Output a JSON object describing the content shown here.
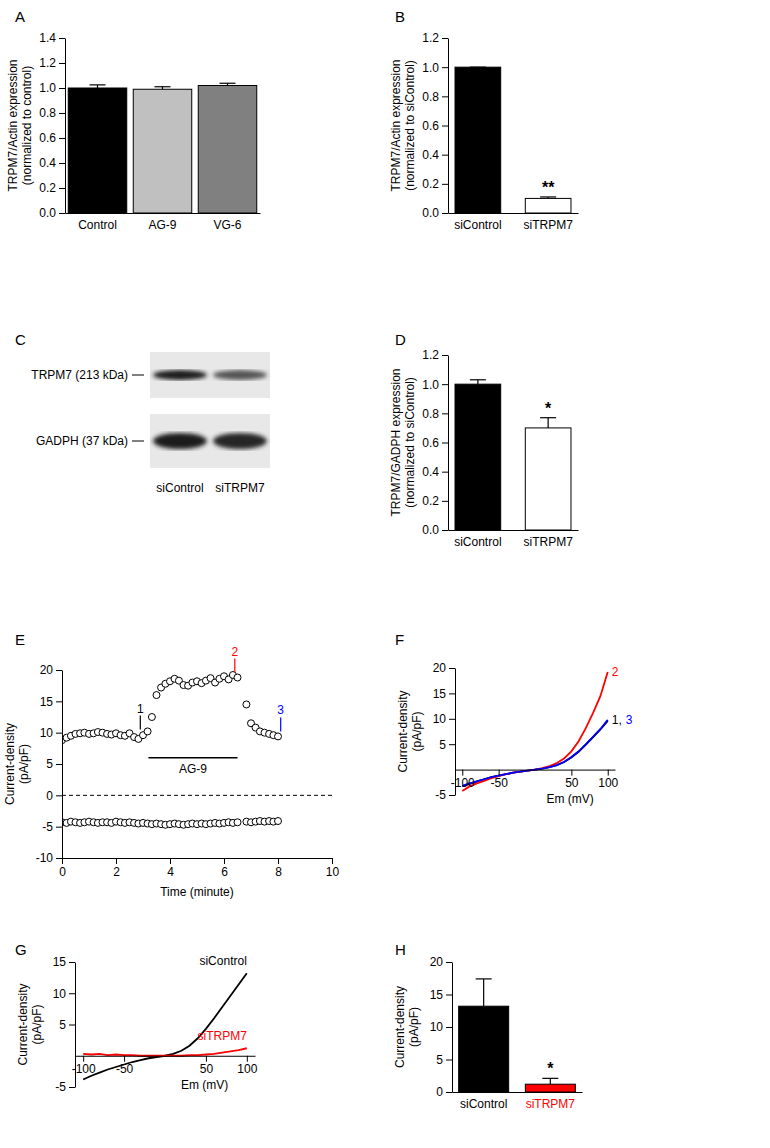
{
  "chart_data": [
    {
      "type": "bar",
      "panel_label": "A",
      "categories": [
        "Control",
        "AG-9",
        "VG-6"
      ],
      "values": [
        1.0,
        0.99,
        1.02
      ],
      "errors": [
        0.025,
        0.02,
        0.018
      ],
      "colors": [
        "#000000",
        "#c0c0c0",
        "#808080"
      ],
      "ylabel": [
        "TRPM7/Actin expression",
        "(normalized to control)"
      ],
      "ylim": [
        0,
        1.4
      ],
      "yticks": [
        {
          "value": 0,
          "label": "0.0"
        },
        0.2,
        0.4,
        0.6,
        0.8,
        {
          "value": 1,
          "label": "1.0"
        },
        1.2,
        1.4
      ]
    },
    {
      "type": "bar",
      "panel_label": "B",
      "categories": [
        "siControl",
        "siTRPM7"
      ],
      "values": [
        1.0,
        0.1
      ],
      "errors": [
        0,
        0.01
      ],
      "colors": [
        "#000000",
        "#ffffff"
      ],
      "ylabel": [
        "TRPM7/Actin expression",
        "(normalized to siControl)"
      ],
      "ylim": [
        0,
        1.2
      ],
      "yticks": [
        {
          "value": 0,
          "label": "0.0"
        },
        0.2,
        0.4,
        0.6,
        0.8,
        {
          "value": 1,
          "label": "1.0"
        },
        1.2
      ],
      "annotations": [
        {
          "category": "siTRPM7",
          "text": "**"
        }
      ]
    },
    {
      "type": "blot",
      "panel_label": "C",
      "rows": [
        "TRPM7 (213 kDa)",
        "GADPH (37 kDa)"
      ],
      "lanes": [
        "siControl",
        "siTRPM7"
      ]
    },
    {
      "type": "bar",
      "panel_label": "D",
      "categories": [
        "siControl",
        "siTRPM7"
      ],
      "values": [
        1.0,
        0.7
      ],
      "errors": [
        0.03,
        0.07
      ],
      "colors": [
        "#000000",
        "#ffffff"
      ],
      "ylabel": [
        "TRPM7/GADPH expression",
        "(normalized to siControl)"
      ],
      "ylim": [
        0,
        1.2
      ],
      "yticks": [
        {
          "value": 0,
          "label": "0.0"
        },
        0.2,
        0.4,
        0.6,
        0.8,
        {
          "value": 1,
          "label": "1.0"
        },
        1.2
      ],
      "annotations": [
        {
          "category": "siTRPM7",
          "text": "*"
        }
      ]
    },
    {
      "type": "scatter",
      "panel_label": "E",
      "xlabel": "Time (minute)",
      "ylabel": [
        "Current-density",
        "(pA/pF)"
      ],
      "x": [
        0,
        0.17,
        0.33,
        0.5,
        0.67,
        0.83,
        1,
        1.17,
        1.33,
        1.5,
        1.67,
        1.83,
        2,
        2.17,
        2.33,
        2.5,
        2.67,
        2.83,
        3,
        3.17,
        3.33,
        3.5,
        3.67,
        3.83,
        4,
        4.17,
        4.33,
        4.5,
        4.67,
        4.83,
        5,
        5.17,
        5.33,
        5.5,
        5.67,
        5.83,
        6,
        6.17,
        6.33,
        6.5,
        6.83,
        7,
        7.17,
        7.33,
        7.5,
        7.67,
        7.83,
        8
      ],
      "series": [
        {
          "color": "#000000",
          "marker": "circle-open",
          "values": [
            8.8,
            9.2,
            9.5,
            9.8,
            9.9,
            10.0,
            9.8,
            9.9,
            10.1,
            10.0,
            9.8,
            9.7,
            9.9,
            9.6,
            9.5,
            9.9,
            9.3,
            9.0,
            9.6,
            10.2,
            12.5,
            16.0,
            17.2,
            17.8,
            18.2,
            18.6,
            18.3,
            17.6,
            17.5,
            18.0,
            18.2,
            17.9,
            18.3,
            18.7,
            18.0,
            18.6,
            19.0,
            18.5,
            19.2,
            18.8,
            14.5,
            11.5,
            10.8,
            10.2,
            10.0,
            9.8,
            9.6,
            9.4
          ]
        },
        {
          "color": "#000000",
          "marker": "circle-open",
          "values": [
            -4.3,
            -4.4,
            -4.2,
            -4.3,
            -4.4,
            -4.3,
            -4.2,
            -4.3,
            -4.4,
            -4.3,
            -4.3,
            -4.4,
            -4.2,
            -4.3,
            -4.4,
            -4.3,
            -4.4,
            -4.5,
            -4.4,
            -4.5,
            -4.6,
            -4.5,
            -4.6,
            -4.7,
            -4.6,
            -4.5,
            -4.6,
            -4.7,
            -4.6,
            -4.5,
            -4.6,
            -4.5,
            -4.6,
            -4.5,
            -4.4,
            -4.5,
            -4.4,
            -4.3,
            -4.4,
            -4.3,
            -4.2,
            -4.3,
            -4.2,
            -4.1,
            -4.2,
            -4.1,
            -4.2,
            -4.1
          ]
        }
      ],
      "hline": 0,
      "treatment": {
        "label": "AG-9",
        "start": 3.2,
        "end": 6.5,
        "y": 6
      },
      "markers": [
        {
          "label": "1",
          "x": 2.9,
          "y": 10.5,
          "color": "#000000"
        },
        {
          "label": "2",
          "x": 6.4,
          "y": 19.6,
          "color": "#ff0000"
        },
        {
          "label": "3",
          "x": 8.1,
          "y": 10.2,
          "color": "#0000ff"
        }
      ],
      "xlim": [
        0,
        10
      ],
      "xticks": [
        0,
        2,
        4,
        6,
        8,
        10
      ],
      "ylim": [
        -10,
        20
      ],
      "yticks": [
        -10,
        -5,
        0,
        5,
        10,
        15,
        20
      ]
    },
    {
      "type": "line",
      "panel_label": "F",
      "xlabel": "Em (mV)",
      "ylabel": [
        "Current-density",
        "(pA/pF)"
      ],
      "x": [
        -100,
        -90,
        -80,
        -70,
        -60,
        -50,
        -40,
        -30,
        -20,
        -10,
        0,
        10,
        20,
        30,
        40,
        50,
        60,
        70,
        80,
        90,
        100
      ],
      "series": [
        {
          "color": "#000000",
          "values": [
            -3.3,
            -2.8,
            -2.3,
            -1.9,
            -1.5,
            -1.2,
            -0.9,
            -0.6,
            -0.4,
            -0.2,
            0,
            0.2,
            0.5,
            0.9,
            1.5,
            2.4,
            3.5,
            4.9,
            6.4,
            7.9,
            9.6
          ]
        },
        {
          "color": "#ff0000",
          "values": [
            -4.2,
            -3.3,
            -2.7,
            -2.2,
            -1.7,
            -1.3,
            -0.9,
            -0.6,
            -0.4,
            -0.2,
            0,
            0.3,
            0.7,
            1.3,
            2.2,
            3.6,
            5.6,
            8.2,
            11.2,
            14.5,
            19.2
          ]
        },
        {
          "color": "#0000ff",
          "values": [
            -3.2,
            -2.7,
            -2.3,
            -1.9,
            -1.5,
            -1.2,
            -0.9,
            -0.6,
            -0.4,
            -0.2,
            0,
            0.2,
            0.5,
            0.9,
            1.5,
            2.5,
            3.6,
            5.0,
            6.5,
            8.0,
            9.8
          ]
        }
      ],
      "annotations": [
        {
          "text": "2",
          "x": 100,
          "y": 19.2,
          "color": "#ff0000"
        },
        {
          "text": "1,",
          "x": 100,
          "y": 9.8,
          "color": "#000000"
        },
        {
          "text": "3",
          "x": 100,
          "y": 9.8,
          "color": "#0000ff"
        }
      ],
      "xlim": [
        -110,
        110
      ],
      "xticks": [
        -100,
        -50,
        50,
        100
      ],
      "ylim": [
        -5,
        20
      ],
      "yticks": [
        -5,
        5,
        10,
        15,
        20
      ]
    },
    {
      "type": "line",
      "panel_label": "G",
      "xlabel": "Em (mV)",
      "ylabel": [
        "Current-density",
        "(pA/pF)"
      ],
      "x": [
        -100,
        -90,
        -80,
        -70,
        -60,
        -50,
        -40,
        -30,
        -20,
        -10,
        0,
        10,
        20,
        30,
        40,
        50,
        60,
        70,
        80,
        90,
        100
      ],
      "series": [
        {
          "name": "siControl",
          "color": "#000000",
          "values": [
            -3.8,
            -3.2,
            -2.7,
            -2.2,
            -1.8,
            -1.4,
            -1.0,
            -0.7,
            -0.4,
            -0.2,
            0,
            0.3,
            0.8,
            1.6,
            2.8,
            4.3,
            6.0,
            7.8,
            9.6,
            11.4,
            13.2
          ]
        },
        {
          "name": "siTRPM7",
          "color": "#ff0000",
          "values": [
            0.3,
            0.2,
            0.3,
            0.1,
            0.2,
            0.1,
            0.1,
            0.0,
            0.0,
            0.0,
            0,
            0.0,
            0.0,
            0.1,
            0.1,
            0.2,
            0.3,
            0.5,
            0.7,
            0.9,
            1.2
          ]
        }
      ],
      "xlim": [
        -110,
        110
      ],
      "xticks": [
        -100,
        -50,
        50,
        100
      ],
      "ylim": [
        -5,
        15
      ],
      "yticks": [
        -5,
        5,
        10,
        15
      ]
    },
    {
      "type": "bar",
      "panel_label": "H",
      "categories": [
        "siControl",
        "siTRPM7"
      ],
      "values": [
        13.2,
        1.2
      ],
      "errors": [
        4.2,
        0.9
      ],
      "colors": [
        "#000000",
        "#ff0000"
      ],
      "ylabel": [
        "Current-density",
        "(pA/pF)"
      ],
      "ylim": [
        0,
        20
      ],
      "yticks": [
        0,
        5,
        10,
        15,
        20
      ],
      "annotations": [
        {
          "category": "siTRPM7",
          "text": "*"
        }
      ]
    }
  ]
}
